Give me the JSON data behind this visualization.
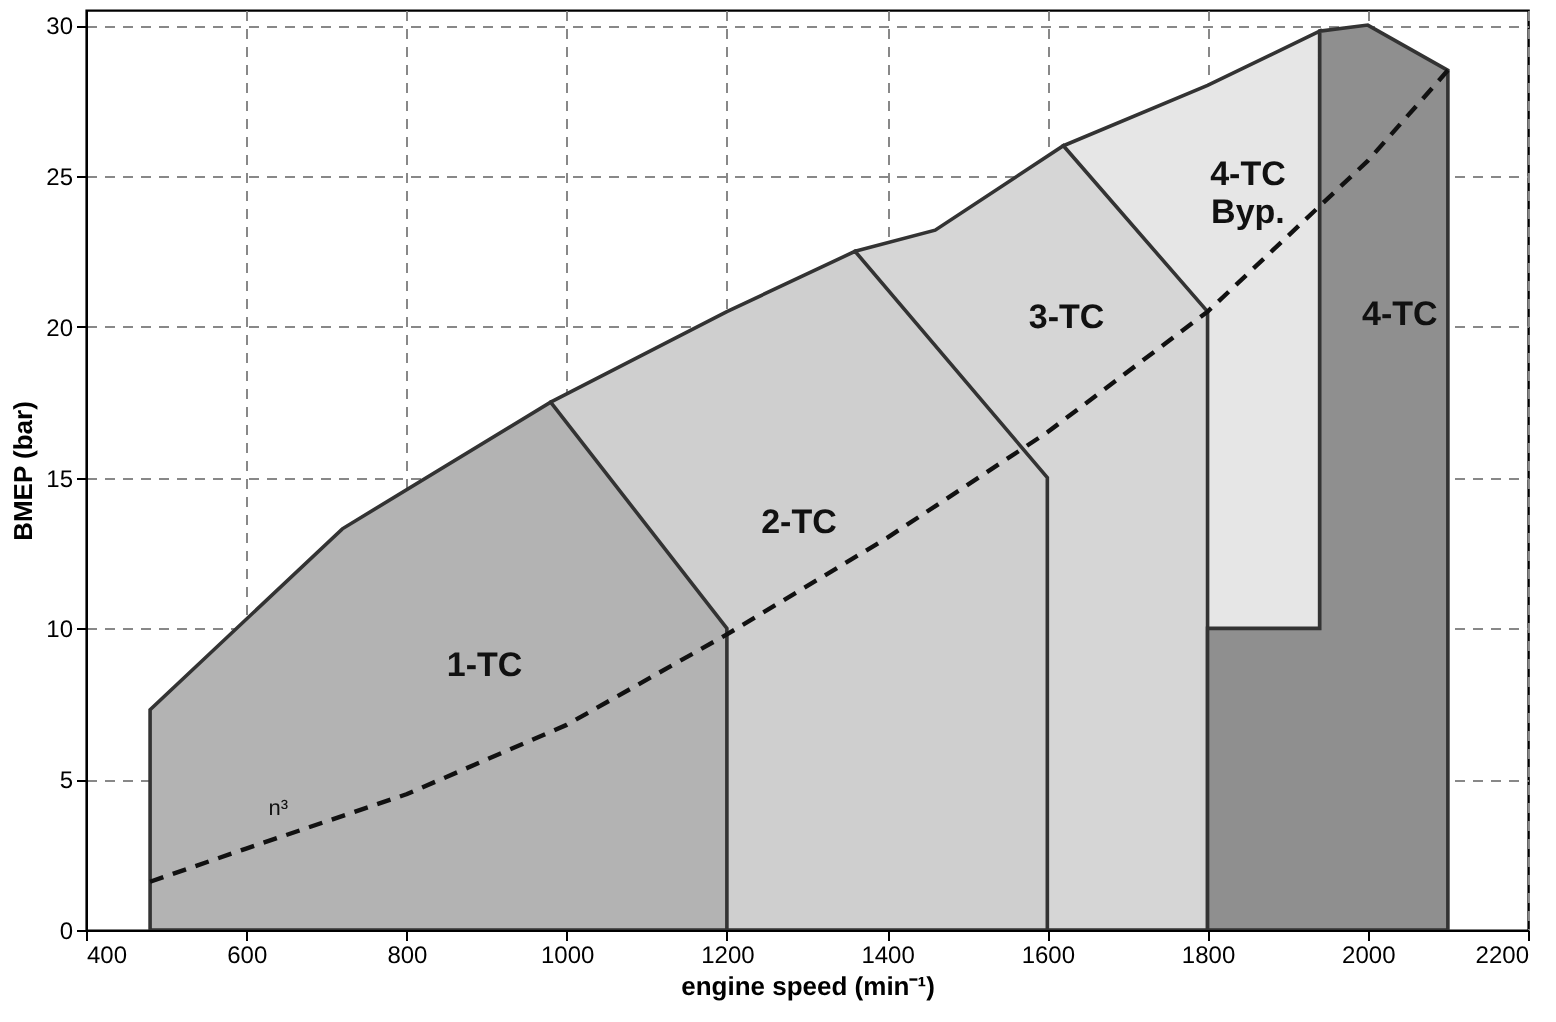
{
  "chart_data": {
    "type": "area",
    "xlabel": "engine speed (min⁻¹)",
    "ylabel": "BMEP (bar)",
    "xlim": [
      400,
      2200
    ],
    "xticks": [
      400,
      600,
      800,
      1000,
      1200,
      1400,
      1600,
      1800,
      2000,
      2200
    ],
    "ylim": [
      0,
      30.5
    ],
    "yticks": [
      0,
      5,
      10,
      15,
      20,
      25,
      30
    ],
    "grid": true,
    "series": [
      {
        "name": "4-TC Byp.",
        "color": "#e6e6e6",
        "x": [
          1620,
          1800,
          1940
        ],
        "values": [
          26,
          28,
          29.8
        ]
      },
      {
        "name": "3-TC",
        "color": "#d6d6d6",
        "x": [
          1360,
          1460,
          1620,
          1800,
          1800
        ],
        "values": [
          22.5,
          23.2,
          26,
          20.5,
          0
        ]
      },
      {
        "name": "2-TC",
        "color": "#cfcfcf",
        "x": [
          980,
          1200,
          1360,
          1600,
          1600
        ],
        "values": [
          17.5,
          20.5,
          22.5,
          15,
          0
        ]
      },
      {
        "name": "1-TC",
        "color": "#b3b3b3",
        "x": [
          480,
          480,
          720,
          980,
          1200,
          1200
        ],
        "values": [
          0,
          7.3,
          13.3,
          17.5,
          10,
          0
        ]
      },
      {
        "name": "4-TC",
        "color": "#8f8f8f",
        "x": [
          1800,
          1800,
          1940,
          1940,
          2000,
          2100,
          2100
        ],
        "values": [
          0,
          10,
          10,
          29.8,
          30,
          28.5,
          0
        ]
      },
      {
        "name": "n³",
        "type": "line",
        "line_style": "dashed",
        "color": "#111111",
        "x": [
          480,
          600,
          800,
          1000,
          1200,
          1400,
          1600,
          1800,
          2000,
          2100
        ],
        "values": [
          1.6,
          2.7,
          4.5,
          6.8,
          9.8,
          13,
          16.5,
          20.5,
          25.5,
          28.5
        ]
      }
    ]
  }
}
